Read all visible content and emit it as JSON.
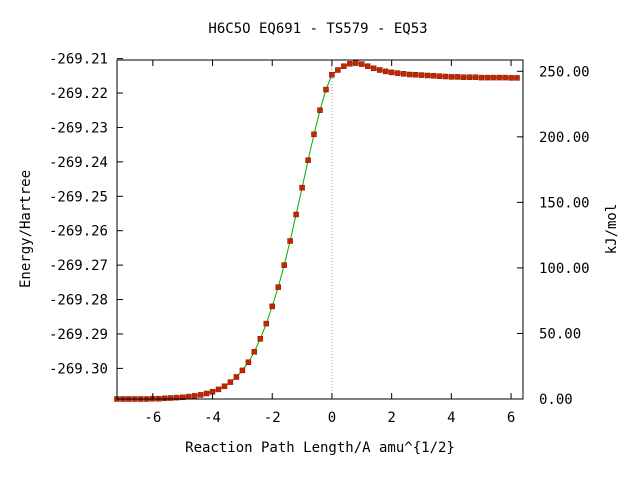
{
  "chart_data": {
    "type": "line",
    "title": "H6C5O   EQ691 - TS579 - EQ53",
    "xlabel": "Reaction Path Length/A amu^{1/2}",
    "ylabel": "Energy/Hartree",
    "y2label": "kJ/mol",
    "xlim": [
      -7.2,
      6.4
    ],
    "ylim": [
      -269.3089,
      -269.2104
    ],
    "y2lim": [
      0,
      258.6
    ],
    "x_ticks": [
      -6,
      -4,
      -2,
      0,
      2,
      4,
      6
    ],
    "x_tick_labels": [
      "-6",
      "-4",
      "-2",
      "0",
      "2",
      "4",
      "6"
    ],
    "y_ticks": [
      -269.21,
      -269.22,
      -269.23,
      -269.24,
      -269.25,
      -269.26,
      -269.27,
      -269.28,
      -269.29,
      -269.3
    ],
    "y_tick_labels": [
      "-269.21",
      "-269.22",
      "-269.23",
      "-269.24",
      "-269.25",
      "-269.26",
      "-269.27",
      "-269.28",
      "-269.29",
      "-269.30"
    ],
    "y2_ticks": [
      0,
      50,
      100,
      150,
      200,
      250
    ],
    "y2_tick_labels": [
      "0.00",
      "50.00",
      "100.00",
      "150.00",
      "200.00",
      "250.00"
    ],
    "ts_x": 0,
    "line_color": "#00aa00",
    "marker_color": "#cc2200",
    "marker_edge": "#7a1a00",
    "ts_line_color": "#999999",
    "series": [
      {
        "x": [
          -7.2,
          -7.0,
          -6.8,
          -6.6,
          -6.4,
          -6.2,
          -6.0,
          -5.8,
          -5.6,
          -5.4,
          -5.2,
          -5.0,
          -4.8,
          -4.6,
          -4.4,
          -4.2,
          -4.0,
          -3.8,
          -3.6,
          -3.4,
          -3.2,
          -3.0,
          -2.8,
          -2.6,
          -2.4,
          -2.2,
          -2.0,
          -1.8,
          -1.6,
          -1.4,
          -1.2,
          -1.0,
          -0.8,
          -0.6,
          -0.4,
          -0.2,
          0.0,
          0.2,
          0.4,
          0.6,
          0.8,
          1.0,
          1.2,
          1.4,
          1.6,
          1.8,
          2.0,
          2.2,
          2.4,
          2.6,
          2.8,
          3.0,
          3.2,
          3.4,
          3.6,
          3.8,
          4.0,
          4.2,
          4.4,
          4.6,
          4.8,
          5.0,
          5.2,
          5.4,
          5.6,
          5.8,
          6.0,
          6.2
        ],
        "y": [
          -269.3089,
          -269.3089,
          -269.3089,
          -269.3089,
          -269.3089,
          -269.3089,
          -269.3088,
          -269.3088,
          -269.3087,
          -269.3086,
          -269.3085,
          -269.3084,
          -269.3082,
          -269.308,
          -269.3077,
          -269.3073,
          -269.3068,
          -269.3061,
          -269.3052,
          -269.304,
          -269.3025,
          -269.3006,
          -269.2982,
          -269.2952,
          -269.2914,
          -269.287,
          -269.282,
          -269.2764,
          -269.27,
          -269.263,
          -269.2553,
          -269.2475,
          -269.2395,
          -269.232,
          -269.225,
          -269.219,
          -269.2147,
          -269.2133,
          -269.2122,
          -269.2115,
          -269.2113,
          -269.2116,
          -269.2122,
          -269.2128,
          -269.2133,
          -269.2137,
          -269.214,
          -269.2142,
          -269.2144,
          -269.2146,
          -269.2147,
          -269.2148,
          -269.2149,
          -269.215,
          -269.2151,
          -269.2152,
          -269.2153,
          -269.2153,
          -269.2154,
          -269.2154,
          -269.2154,
          -269.2155,
          -269.2155,
          -269.2155,
          -269.2155,
          -269.2155,
          -269.2156,
          -269.2156
        ]
      }
    ]
  }
}
